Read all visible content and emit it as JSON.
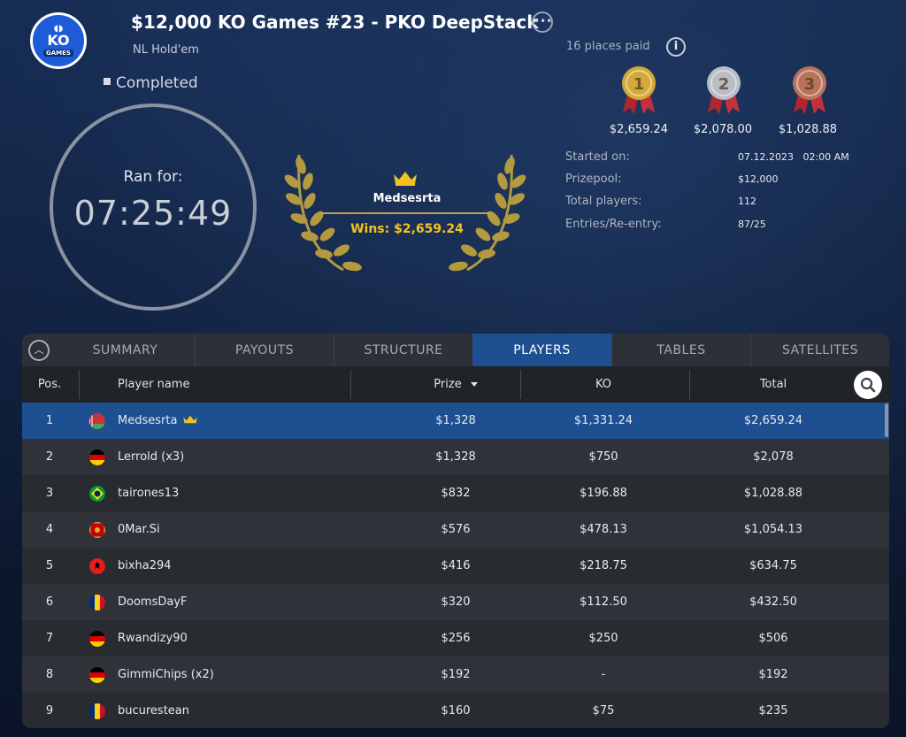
{
  "header": {
    "logo_text": "KO",
    "logo_sub": "GAMES",
    "title": "$12,000 KO Games #23 - PKO DeepStack",
    "subtitle": "NL Hold'em",
    "status": "Completed",
    "more_icon": "ellipsis-icon"
  },
  "timer": {
    "label": "Ran for:",
    "value": "07:25:49"
  },
  "winner": {
    "name": "Medsesrta",
    "wins": "Wins: $2,659.24"
  },
  "payouts": {
    "places_paid": "16 places paid",
    "medals": [
      {
        "rank": "1",
        "amount": "$2,659.24",
        "color": "#d4a937"
      },
      {
        "rank": "2",
        "amount": "$2,078.00",
        "color": "#b9bec6"
      },
      {
        "rank": "3",
        "amount": "$1,028.88",
        "color": "#b8735a"
      }
    ]
  },
  "details": [
    {
      "label": "Started on:",
      "value": "07.12.2023   02:00 AM"
    },
    {
      "label": "Prizepool:",
      "value": "$12,000"
    },
    {
      "label": "Total players:",
      "value": "112"
    },
    {
      "label": "Entries/Re-entry:",
      "value": "87/25"
    }
  ],
  "tabs": [
    "SUMMARY",
    "PAYOUTS",
    "STRUCTURE",
    "PLAYERS",
    "TABLES",
    "SATELLITES"
  ],
  "active_tab": "PLAYERS",
  "columns": {
    "pos": "Pos.",
    "name": "Player name",
    "prize": "Prize",
    "ko": "KO",
    "total": "Total"
  },
  "players": [
    {
      "pos": "1",
      "flag": "belarus",
      "name": "Medsesrta",
      "prize": "$1,328",
      "ko": "$1,331.24",
      "total": "$2,659.24",
      "crown": true
    },
    {
      "pos": "2",
      "flag": "germany",
      "name": "Lerrold (x3)",
      "prize": "$1,328",
      "ko": "$750",
      "total": "$2,078"
    },
    {
      "pos": "3",
      "flag": "brazil",
      "name": "tairones13",
      "prize": "$832",
      "ko": "$196.88",
      "total": "$1,028.88"
    },
    {
      "pos": "4",
      "flag": "montenegro",
      "name": "0Mar.Si",
      "prize": "$576",
      "ko": "$478.13",
      "total": "$1,054.13"
    },
    {
      "pos": "5",
      "flag": "albania",
      "name": "bixha294",
      "prize": "$416",
      "ko": "$218.75",
      "total": "$634.75"
    },
    {
      "pos": "6",
      "flag": "romania",
      "name": "DoomsDayF",
      "prize": "$320",
      "ko": "$112.50",
      "total": "$432.50"
    },
    {
      "pos": "7",
      "flag": "germany",
      "name": "Rwandizy90",
      "prize": "$256",
      "ko": "$250",
      "total": "$506"
    },
    {
      "pos": "8",
      "flag": "germany",
      "name": "GimmiChips (x2)",
      "prize": "$192",
      "ko": "-",
      "total": "$192"
    },
    {
      "pos": "9",
      "flag": "romania",
      "name": "bucurestean",
      "prize": "$160",
      "ko": "$75",
      "total": "$235"
    }
  ]
}
